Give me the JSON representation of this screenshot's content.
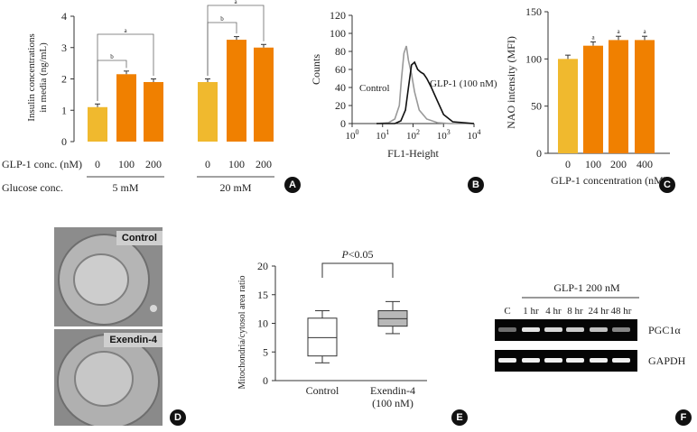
{
  "colors": {
    "yellow": "#f0b92e",
    "orange": "#f08000",
    "gray_box": "#b8b8b8",
    "badge": "#111111"
  },
  "panels": {
    "a": "A",
    "b": "B",
    "c": "C",
    "d": "D",
    "e": "E",
    "f": "F"
  },
  "chart_data": [
    {
      "type": "bar",
      "id": "A",
      "ylabel": "Insulin concentrations in media (ng/mL)",
      "ylabel_lines": [
        "Insulin concentrations",
        "in media (ng/mL)"
      ],
      "ylim": [
        0,
        4
      ],
      "yticks": [
        "0",
        "1",
        "2",
        "3",
        "4"
      ],
      "row_labels": {
        "glp": "GLP-1 conc. (nM)",
        "glucose": "Glucose conc."
      },
      "groups": [
        {
          "glucose": "5 mM",
          "categories": [
            "0",
            "100",
            "200"
          ],
          "values": [
            1.1,
            2.15,
            1.9
          ],
          "errors": [
            0.1,
            0.1,
            0.1
          ]
        },
        {
          "glucose": "20 mM",
          "categories": [
            "0",
            "100",
            "200"
          ],
          "values": [
            1.9,
            3.25,
            3.0
          ],
          "errors": [
            0.1,
            0.1,
            0.1
          ]
        }
      ],
      "sig_labels": [
        "a",
        "b",
        "b",
        "a"
      ]
    },
    {
      "type": "line",
      "id": "B",
      "ylabel": "Counts",
      "xlabel": "FL1-Height",
      "ylim": [
        0,
        120
      ],
      "yticks": [
        "0",
        "20",
        "40",
        "60",
        "80",
        "100",
        "120"
      ],
      "xtick_exponents": [
        "0",
        "1",
        "2",
        "3",
        "4"
      ],
      "series": [
        {
          "name": "Control",
          "x": [
            0.8,
            1.2,
            1.4,
            1.55,
            1.62,
            1.7,
            1.78,
            1.85,
            1.95,
            2.05,
            2.2,
            2.45,
            2.8,
            3.2,
            4.0
          ],
          "y": [
            0,
            1,
            5,
            20,
            50,
            78,
            86,
            70,
            55,
            35,
            15,
            5,
            1,
            0,
            0
          ]
        },
        {
          "name": "GLP-1 (100 nM)",
          "x": [
            0.8,
            1.4,
            1.6,
            1.75,
            1.85,
            1.95,
            2.05,
            2.15,
            2.25,
            2.35,
            2.45,
            2.6,
            2.8,
            3.0,
            3.3,
            4.0
          ],
          "y": [
            0,
            0,
            3,
            15,
            40,
            65,
            68,
            60,
            57,
            55,
            50,
            40,
            25,
            10,
            2,
            0
          ]
        }
      ]
    },
    {
      "type": "bar",
      "id": "C",
      "ylabel": "NAO intensity (MFI)",
      "xlabel": "GLP-1 concentration (nM)",
      "ylim": [
        0,
        150
      ],
      "yticks": [
        "0",
        "50",
        "100",
        "150"
      ],
      "categories": [
        "0",
        "100",
        "200",
        "400"
      ],
      "values": [
        100,
        114,
        120,
        120
      ],
      "errors": [
        4,
        4,
        4,
        4
      ],
      "sig_labels": [
        "",
        "a",
        "a",
        "a"
      ]
    },
    {
      "type": "box",
      "id": "E",
      "ylabel": "Mitochondria/cytosol area ratio",
      "ylim": [
        0,
        20
      ],
      "yticks": [
        "0",
        "5",
        "10",
        "15",
        "20"
      ],
      "categories": [
        "Control",
        "Exendin-4"
      ],
      "subtitles": [
        "",
        "(100 nM)"
      ],
      "boxes": [
        {
          "min": 3.1,
          "q1": 4.3,
          "median": 7.5,
          "q3": 10.9,
          "max": 12.2
        },
        {
          "min": 8.2,
          "q1": 9.5,
          "median": 10.8,
          "q3": 12.2,
          "max": 13.8
        }
      ],
      "annotation": "P<0.05",
      "annotation_italic": "P",
      "annotation_rest": "<0.05"
    }
  ],
  "em_images": {
    "top_label": "Control",
    "bottom_label": "Exendin-4"
  },
  "gel": {
    "header": "GLP-1 200 nM",
    "lanes": [
      "C",
      "1 hr",
      "4 hr",
      "8 hr",
      "24 hr",
      "48 hr"
    ],
    "rows": [
      {
        "label": "PGC1α",
        "intensities": [
          0.45,
          0.95,
          0.9,
          0.85,
          0.8,
          0.55
        ]
      },
      {
        "label": "GAPDH",
        "intensities": [
          1,
          1,
          1,
          1,
          1,
          1
        ]
      }
    ]
  }
}
